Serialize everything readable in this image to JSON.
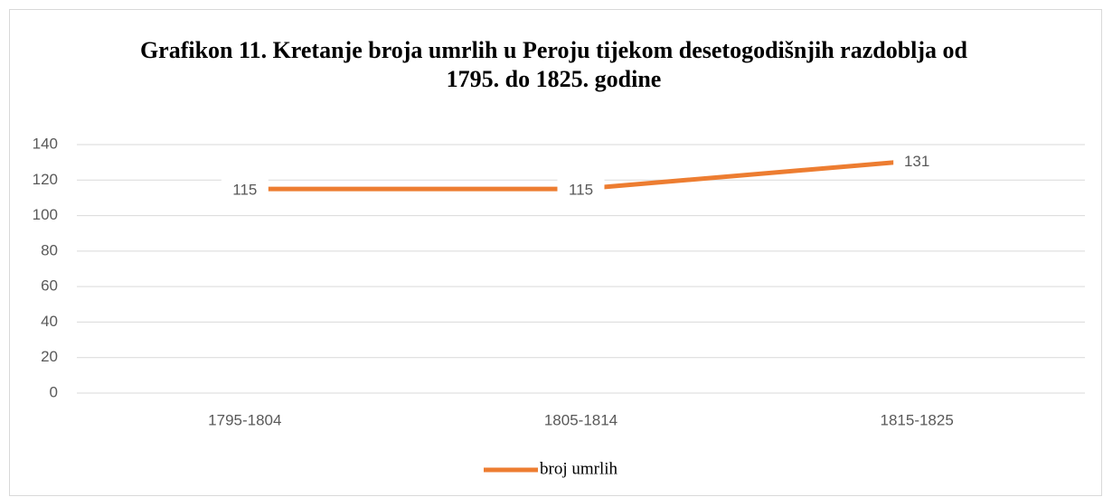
{
  "chart_data": {
    "type": "line",
    "title": "Grafikon 11. Kretanje broja umrlih u Peroju tijekom desetogodišnjih razdoblja od 1795. do 1825. godine",
    "categories": [
      "1795-1804",
      "1805-1814",
      "1815-1825"
    ],
    "series": [
      {
        "name": "broj umrlih",
        "color": "#ed7d31",
        "values": [
          115,
          115,
          131
        ]
      }
    ],
    "ylim": [
      0,
      140
    ],
    "yticks": [
      0,
      20,
      40,
      60,
      80,
      100,
      120,
      140
    ],
    "grid": true,
    "legend": "bottom"
  }
}
